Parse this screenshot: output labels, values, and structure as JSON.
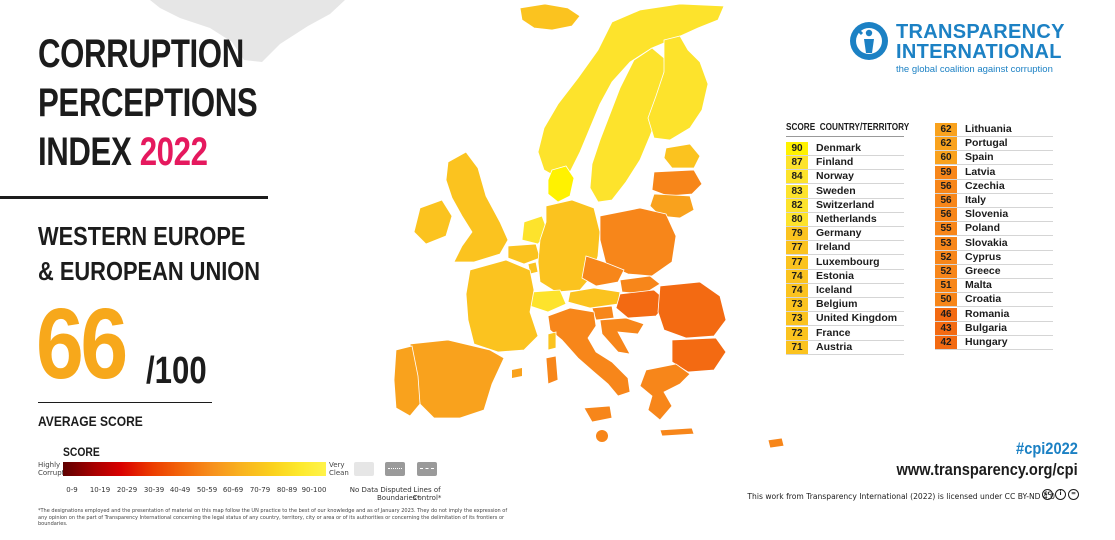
{
  "title": {
    "line1": "CORRUPTION",
    "line2": "PERCEPTIONS",
    "line3_text": "INDEX",
    "line3_year": "2022"
  },
  "region": {
    "line1": "WESTERN EUROPE",
    "line2": "& EUROPEAN UNION"
  },
  "average": {
    "score": "66",
    "out_of": "/100",
    "label": "AVERAGE SCORE"
  },
  "legend": {
    "title": "SCORE",
    "low_label": "Highly Corrupt",
    "high_label": "Very Clean",
    "ranges": [
      "0-9",
      "10-19",
      "20-29",
      "30-39",
      "40-49",
      "50-59",
      "60-69",
      "70-79",
      "80-89",
      "90-100"
    ],
    "no_data": "No Data",
    "disputed": "Disputed Boundaries*",
    "lines_of_control": "Lines of Control*"
  },
  "disclaimer": "*The designations employed and the presentation of material on this map follow the UN practice to the best of our knowledge and as of January 2023. They do not imply the expression of any opinion on the part of Transparency International concerning the legal status of any country, territory, city or area or of its authorities or concerning the delimitation of its frontiers or boundaries.",
  "logo": {
    "name_line1": "TRANSPARENCY",
    "name_line2": "INTERNATIONAL",
    "tagline": "the global coalition against corruption"
  },
  "table": {
    "header_score": "SCORE",
    "header_country": "COUNTRY/TERRITORY",
    "left_column": [
      {
        "score": 90,
        "country": "Denmark",
        "color": "#fff200"
      },
      {
        "score": 87,
        "country": "Finland",
        "color": "#fde32c"
      },
      {
        "score": 84,
        "country": "Norway",
        "color": "#fde32c"
      },
      {
        "score": 83,
        "country": "Sweden",
        "color": "#fde32c"
      },
      {
        "score": 82,
        "country": "Switzerland",
        "color": "#fde32c"
      },
      {
        "score": 80,
        "country": "Netherlands",
        "color": "#fde32c"
      },
      {
        "score": 79,
        "country": "Germany",
        "color": "#fbc31f"
      },
      {
        "score": 77,
        "country": "Ireland",
        "color": "#fbc31f"
      },
      {
        "score": 77,
        "country": "Luxembourg",
        "color": "#fbc31f"
      },
      {
        "score": 74,
        "country": "Estonia",
        "color": "#fbc31f"
      },
      {
        "score": 74,
        "country": "Iceland",
        "color": "#fbc31f"
      },
      {
        "score": 73,
        "country": "Belgium",
        "color": "#fbc31f"
      },
      {
        "score": 73,
        "country": "United Kingdom",
        "color": "#fbc31f"
      },
      {
        "score": 72,
        "country": "France",
        "color": "#fbc31f"
      },
      {
        "score": 71,
        "country": "Austria",
        "color": "#fbc31f"
      }
    ],
    "right_column": [
      {
        "score": 62,
        "country": "Lithuania",
        "color": "#f9a21d"
      },
      {
        "score": 62,
        "country": "Portugal",
        "color": "#f9a21d"
      },
      {
        "score": 60,
        "country": "Spain",
        "color": "#f9a21d"
      },
      {
        "score": 59,
        "country": "Latvia",
        "color": "#f7861a"
      },
      {
        "score": 56,
        "country": "Czechia",
        "color": "#f7861a"
      },
      {
        "score": 56,
        "country": "Italy",
        "color": "#f7861a"
      },
      {
        "score": 56,
        "country": "Slovenia",
        "color": "#f7861a"
      },
      {
        "score": 55,
        "country": "Poland",
        "color": "#f7861a"
      },
      {
        "score": 53,
        "country": "Slovakia",
        "color": "#f7861a"
      },
      {
        "score": 52,
        "country": "Cyprus",
        "color": "#f7861a"
      },
      {
        "score": 52,
        "country": "Greece",
        "color": "#f7861a"
      },
      {
        "score": 51,
        "country": "Malta",
        "color": "#f7861a"
      },
      {
        "score": 50,
        "country": "Croatia",
        "color": "#f7861a"
      },
      {
        "score": 46,
        "country": "Romania",
        "color": "#f36a12"
      },
      {
        "score": 43,
        "country": "Bulgaria",
        "color": "#f36a12"
      },
      {
        "score": 42,
        "country": "Hungary",
        "color": "#f36a12"
      }
    ]
  },
  "footer": {
    "hashtag": "#cpi2022",
    "website": "www.transparency.org/cpi",
    "license": "This work from Transparency International (2022) is licensed under CC BY-ND 4.0"
  },
  "colors": {
    "brand_blue": "#1c81c4",
    "accent_pink": "#e5195e",
    "accent_orange": "#f7a81b",
    "no_data_grey": "#e6e6e6",
    "disputed_grey": "#9a9a9a"
  }
}
